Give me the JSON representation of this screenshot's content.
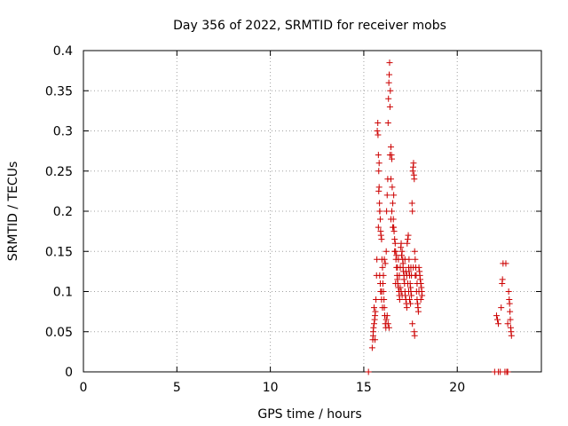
{
  "chart_data": {
    "type": "scatter",
    "title": "Day 356 of 2022, SRMTID for receiver mobs",
    "xlabel": "GPS time / hours",
    "ylabel": "SRMTID / TECUs",
    "xlim": [
      0,
      24.5
    ],
    "ylim": [
      0,
      0.4
    ],
    "xticks": [
      0,
      5,
      10,
      15,
      20
    ],
    "xtick_labels": [
      "0",
      "5",
      "10",
      "15",
      "20"
    ],
    "yticks": [
      0,
      0.05,
      0.1,
      0.15,
      0.2,
      0.25,
      0.3,
      0.35,
      0.4
    ],
    "ytick_labels": [
      "0",
      "0.05",
      "0.1",
      "0.15",
      "0.2",
      "0.25",
      "0.3",
      "0.35",
      "0.4"
    ],
    "grid": true,
    "marker": "plus",
    "color": "#cc0000",
    "series": [
      {
        "points": [
          [
            15.45,
            0.03
          ],
          [
            15.48,
            0.04
          ],
          [
            15.5,
            0.045
          ],
          [
            15.52,
            0.055
          ],
          [
            15.55,
            0.06
          ],
          [
            15.58,
            0.065
          ],
          [
            15.6,
            0.07
          ],
          [
            15.62,
            0.075
          ],
          [
            15.5,
            0.05
          ],
          [
            15.55,
            0.08
          ],
          [
            15.6,
            0.04
          ],
          [
            15.65,
            0.09
          ],
          [
            15.68,
            0.12
          ],
          [
            15.7,
            0.14
          ],
          [
            15.72,
            0.3
          ],
          [
            15.75,
            0.31
          ],
          [
            15.76,
            0.295
          ],
          [
            15.78,
            0.27
          ],
          [
            15.8,
            0.25
          ],
          [
            15.82,
            0.23
          ],
          [
            15.84,
            0.21
          ],
          [
            15.86,
            0.2
          ],
          [
            15.88,
            0.19
          ],
          [
            15.9,
            0.175
          ],
          [
            15.92,
            0.17
          ],
          [
            15.95,
            0.165
          ],
          [
            15.97,
            0.14
          ],
          [
            16.0,
            0.13
          ],
          [
            16.02,
            0.11
          ],
          [
            16.05,
            0.1
          ],
          [
            16.08,
            0.09
          ],
          [
            16.1,
            0.08
          ],
          [
            16.12,
            0.07
          ],
          [
            16.15,
            0.06
          ],
          [
            16.18,
            0.055
          ],
          [
            15.78,
            0.18
          ],
          [
            15.85,
            0.12
          ],
          [
            15.9,
            0.1
          ],
          [
            15.95,
            0.09
          ],
          [
            16.0,
            0.08
          ],
          [
            16.05,
            0.12
          ],
          [
            16.1,
            0.14
          ],
          [
            16.15,
            0.135
          ],
          [
            16.2,
            0.15
          ],
          [
            16.22,
            0.2
          ],
          [
            16.25,
            0.22
          ],
          [
            16.28,
            0.24
          ],
          [
            16.3,
            0.31
          ],
          [
            16.32,
            0.34
          ],
          [
            16.34,
            0.36
          ],
          [
            16.36,
            0.37
          ],
          [
            16.38,
            0.385
          ],
          [
            16.4,
            0.33
          ],
          [
            16.42,
            0.35
          ],
          [
            16.45,
            0.28
          ],
          [
            16.48,
            0.27
          ],
          [
            16.5,
            0.265
          ],
          [
            16.52,
            0.23
          ],
          [
            16.55,
            0.21
          ],
          [
            16.58,
            0.19
          ],
          [
            16.6,
            0.18
          ],
          [
            16.62,
            0.175
          ],
          [
            16.65,
            0.165
          ],
          [
            16.68,
            0.16
          ],
          [
            16.7,
            0.15
          ],
          [
            16.72,
            0.14
          ],
          [
            16.75,
            0.13
          ],
          [
            16.78,
            0.12
          ],
          [
            16.8,
            0.115
          ],
          [
            16.82,
            0.11
          ],
          [
            16.85,
            0.105
          ],
          [
            16.88,
            0.1
          ],
          [
            16.9,
            0.095
          ],
          [
            16.92,
            0.09
          ],
          [
            16.95,
            0.13
          ],
          [
            16.98,
            0.155
          ],
          [
            17.0,
            0.16
          ],
          [
            17.02,
            0.145
          ],
          [
            17.05,
            0.15
          ],
          [
            17.08,
            0.14
          ],
          [
            17.1,
            0.135
          ],
          [
            17.12,
            0.125
          ],
          [
            17.15,
            0.12
          ],
          [
            17.18,
            0.11
          ],
          [
            17.2,
            0.1
          ],
          [
            17.22,
            0.095
          ],
          [
            17.25,
            0.09
          ],
          [
            17.28,
            0.085
          ],
          [
            17.3,
            0.08
          ],
          [
            17.32,
            0.16
          ],
          [
            17.35,
            0.165
          ],
          [
            17.38,
            0.17
          ],
          [
            17.4,
            0.13
          ],
          [
            17.42,
            0.125
          ],
          [
            17.45,
            0.12
          ],
          [
            17.48,
            0.11
          ],
          [
            17.5,
            0.105
          ],
          [
            17.52,
            0.1
          ],
          [
            17.55,
            0.095
          ],
          [
            17.58,
            0.21
          ],
          [
            17.6,
            0.2
          ],
          [
            17.62,
            0.25
          ],
          [
            17.64,
            0.255
          ],
          [
            17.66,
            0.26
          ],
          [
            17.68,
            0.245
          ],
          [
            17.7,
            0.24
          ],
          [
            17.72,
            0.15
          ],
          [
            17.75,
            0.14
          ],
          [
            17.78,
            0.13
          ],
          [
            17.8,
            0.12
          ],
          [
            17.82,
            0.1
          ],
          [
            17.85,
            0.09
          ],
          [
            17.88,
            0.085
          ],
          [
            17.9,
            0.08
          ],
          [
            17.92,
            0.075
          ],
          [
            17.95,
            0.13
          ],
          [
            17.98,
            0.125
          ],
          [
            18.0,
            0.12
          ],
          [
            18.02,
            0.115
          ],
          [
            18.05,
            0.11
          ],
          [
            18.08,
            0.105
          ],
          [
            18.1,
            0.1
          ],
          [
            18.12,
            0.095
          ],
          [
            17.7,
            0.05
          ],
          [
            17.72,
            0.045
          ],
          [
            17.6,
            0.06
          ],
          [
            16.3,
            0.06
          ],
          [
            16.35,
            0.055
          ],
          [
            16.2,
            0.065
          ],
          [
            16.25,
            0.07
          ],
          [
            15.95,
            0.1
          ],
          [
            15.88,
            0.11
          ],
          [
            16.45,
            0.19
          ],
          [
            16.5,
            0.2
          ],
          [
            16.6,
            0.22
          ],
          [
            16.7,
            0.11
          ],
          [
            16.8,
            0.13
          ],
          [
            16.85,
            0.14
          ],
          [
            16.9,
            0.12
          ],
          [
            17.0,
            0.1
          ],
          [
            17.05,
            0.095
          ],
          [
            17.1,
            0.13
          ],
          [
            17.2,
            0.14
          ],
          [
            17.3,
            0.12
          ],
          [
            17.35,
            0.11
          ],
          [
            17.4,
            0.1
          ],
          [
            17.45,
            0.09
          ],
          [
            17.5,
            0.085
          ],
          [
            17.55,
            0.12
          ],
          [
            17.65,
            0.13
          ],
          [
            17.75,
            0.12
          ],
          [
            17.85,
            0.11
          ],
          [
            17.95,
            0.1
          ],
          [
            18.05,
            0.09
          ],
          [
            15.82,
            0.26
          ],
          [
            15.8,
            0.225
          ],
          [
            15.85,
            0.2
          ],
          [
            16.4,
            0.27
          ],
          [
            16.45,
            0.24
          ],
          [
            16.55,
            0.18
          ],
          [
            16.65,
            0.15
          ],
          [
            16.75,
            0.145
          ],
          [
            16.95,
            0.105
          ],
          [
            17.15,
            0.115
          ],
          [
            17.25,
            0.125
          ],
          [
            17.42,
            0.14
          ],
          [
            17.52,
            0.13
          ],
          [
            22.1,
            0.07
          ],
          [
            22.15,
            0.065
          ],
          [
            22.2,
            0.06
          ],
          [
            22.35,
            0.08
          ],
          [
            22.4,
            0.11
          ],
          [
            22.42,
            0.115
          ],
          [
            22.45,
            0.135
          ],
          [
            22.6,
            0.135
          ],
          [
            22.75,
            0.1
          ],
          [
            22.78,
            0.09
          ],
          [
            22.8,
            0.085
          ],
          [
            22.82,
            0.075
          ],
          [
            22.84,
            0.065
          ],
          [
            22.86,
            0.055
          ],
          [
            22.88,
            0.05
          ],
          [
            22.9,
            0.045
          ],
          [
            22.7,
            0.06
          ],
          [
            15.25,
            0.0
          ],
          [
            22.0,
            0.0
          ],
          [
            22.2,
            0.0
          ],
          [
            22.3,
            0.0
          ],
          [
            22.55,
            0.0
          ],
          [
            22.65,
            0.0
          ],
          [
            22.7,
            0.0
          ]
        ]
      }
    ]
  }
}
